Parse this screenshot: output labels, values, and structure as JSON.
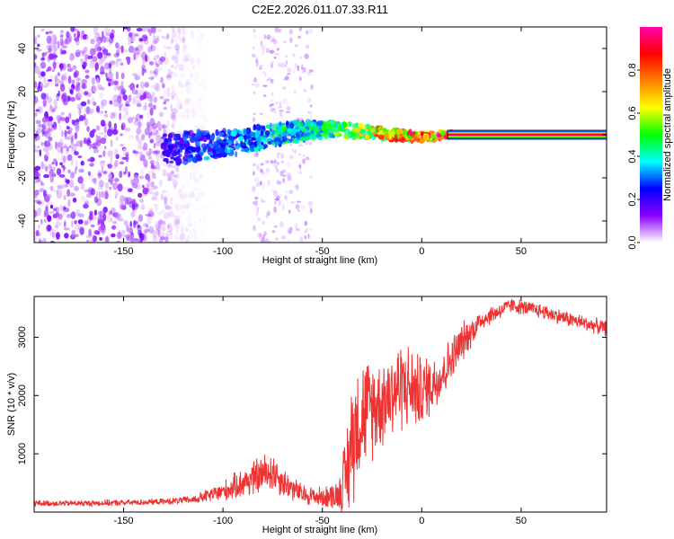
{
  "figure": {
    "title": "C2E2.2026.011.07.33.R11"
  },
  "chart_data": [
    {
      "type": "heatmap",
      "name": "spectrogram",
      "xlabel": "Height of straight line (km)",
      "ylabel": "Frequency (Hz)",
      "xlim": [
        -195,
        93
      ],
      "ylim": [
        -50,
        50
      ],
      "xticks": [
        -150,
        -100,
        -50,
        0,
        50
      ],
      "yticks": [
        -40,
        -20,
        0,
        20,
        40
      ],
      "colorbar": {
        "label": "Normalized spectral amplitude",
        "range": [
          0.0,
          1.0
        ],
        "ticks": [
          "0.0",
          "0.2",
          "0.4",
          "0.6",
          "0.8"
        ],
        "tick_values": [
          0.0,
          0.2,
          0.4,
          0.6,
          0.8
        ],
        "colors": [
          "#ffffff",
          "#8800ff",
          "#0000ff",
          "#00ffff",
          "#00ff00",
          "#ffff00",
          "#ff8000",
          "#ff0000",
          "#ff00aa"
        ]
      },
      "features": {
        "diffuse_noise_region_km": [
          -195,
          -108
        ],
        "secondary_noise_band_km": [
          -85,
          -55
        ],
        "signal_track": [
          {
            "x": -130,
            "y": -7,
            "level": 0.25
          },
          {
            "x": -110,
            "y": -5,
            "level": 0.3
          },
          {
            "x": -95,
            "y": -4,
            "level": 0.35
          },
          {
            "x": -80,
            "y": -1,
            "level": 0.4
          },
          {
            "x": -60,
            "y": 2,
            "level": 0.45
          },
          {
            "x": -45,
            "y": 3,
            "level": 0.5
          },
          {
            "x": -30,
            "y": 1.5,
            "level": 0.65
          },
          {
            "x": -15,
            "y": 0,
            "level": 0.8
          },
          {
            "x": 0,
            "y": -1,
            "level": 0.85
          },
          {
            "x": 13,
            "y": 0,
            "level": 0.95
          },
          {
            "x": 93,
            "y": 0,
            "level": 1.0
          }
        ]
      }
    },
    {
      "type": "line",
      "name": "snr",
      "xlabel": "Height of straight line (km)",
      "ylabel": "SNR (10 * v/v)",
      "xlim": [
        -195,
        93
      ],
      "ylim": [
        0,
        3700
      ],
      "xticks": [
        -150,
        -100,
        -50,
        0,
        50
      ],
      "yticks": [
        1000,
        2000,
        3000
      ],
      "color": "#ee3333",
      "x": [
        -195,
        -170,
        -150,
        -130,
        -115,
        -100,
        -90,
        -80,
        -75,
        -70,
        -60,
        -50,
        -42,
        -38,
        -35,
        -30,
        -25,
        -20,
        -10,
        0,
        10,
        20,
        30,
        45,
        60,
        75,
        93
      ],
      "y": [
        150,
        150,
        160,
        180,
        210,
        350,
        500,
        650,
        700,
        520,
        300,
        250,
        300,
        600,
        1300,
        1700,
        1800,
        1900,
        2200,
        2050,
        2350,
        2900,
        3300,
        3550,
        3450,
        3300,
        3150
      ],
      "noise_amplitude": [
        60,
        60,
        60,
        60,
        80,
        200,
        300,
        400,
        400,
        300,
        200,
        200,
        300,
        900,
        1300,
        1100,
        1000,
        900,
        900,
        700,
        500,
        400,
        200,
        150,
        150,
        150,
        150
      ]
    }
  ]
}
